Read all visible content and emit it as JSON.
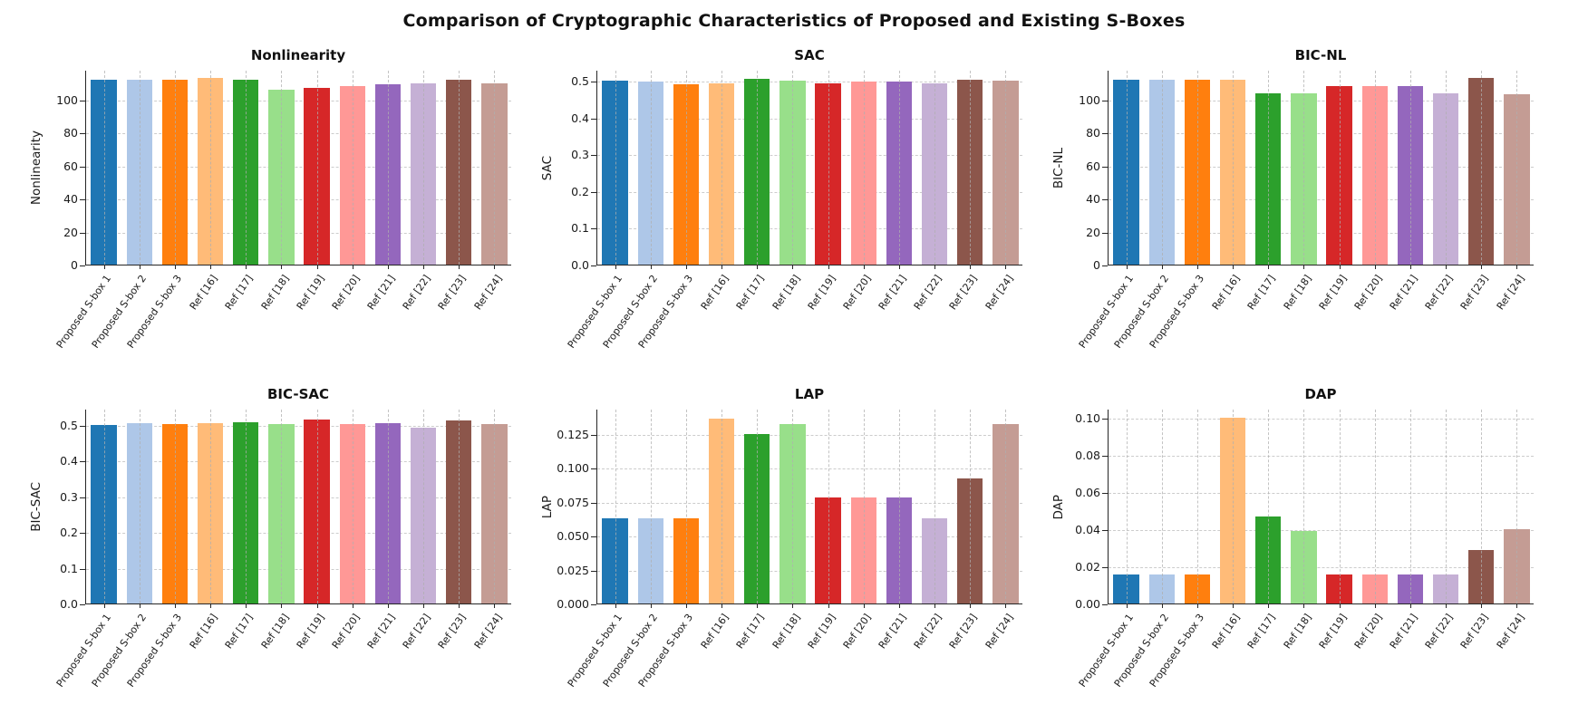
{
  "page_title": "Comparison of Cryptographic Characteristics of Proposed and Existing S-Boxes",
  "bar_colors": [
    "#1f77b4",
    "#aec7e8",
    "#ff7f0e",
    "#ffbb78",
    "#2ca02c",
    "#98df8a",
    "#d62728",
    "#ff9896",
    "#9467bd",
    "#c5b0d5",
    "#8c564b",
    "#c49c94"
  ],
  "categories": [
    "Proposed S-box 1",
    "Proposed S-box 2",
    "Proposed S-box 3",
    "Ref [16]",
    "Ref [17]",
    "Ref [18]",
    "Ref [19]",
    "Ref [20]",
    "Ref [21]",
    "Ref [22]",
    "Ref [23]",
    "Ref [24]"
  ],
  "chart_data": [
    {
      "type": "bar",
      "title": "Nonlinearity",
      "ylabel": "Nonlinearity",
      "xlabel": "",
      "grid": "dashed",
      "legend": "none",
      "categories": [
        "Proposed S-box 1",
        "Proposed S-box 2",
        "Proposed S-box 3",
        "Ref [16]",
        "Ref [17]",
        "Ref [18]",
        "Ref [19]",
        "Ref [20]",
        "Ref [21]",
        "Ref [22]",
        "Ref [23]",
        "Ref [24]"
      ],
      "values": [
        112,
        112,
        112,
        113,
        112,
        106,
        107,
        108,
        109,
        110,
        112,
        110
      ],
      "ylim": [
        0,
        118
      ],
      "ytick_values": [
        0,
        20,
        40,
        60,
        80,
        100
      ],
      "ytick_labels": [
        "0",
        "20",
        "40",
        "60",
        "80",
        "100"
      ]
    },
    {
      "type": "bar",
      "title": "SAC",
      "ylabel": "SAC",
      "xlabel": "",
      "grid": "dashed",
      "legend": "none",
      "categories": [
        "Proposed S-box 1",
        "Proposed S-box 2",
        "Proposed S-box 3",
        "Ref [16]",
        "Ref [17]",
        "Ref [18]",
        "Ref [19]",
        "Ref [20]",
        "Ref [21]",
        "Ref [22]",
        "Ref [23]",
        "Ref [24]"
      ],
      "values": [
        0.5,
        0.499,
        0.49,
        0.494,
        0.505,
        0.5,
        0.493,
        0.498,
        0.499,
        0.494,
        0.502,
        0.5
      ],
      "ylim": [
        0,
        0.53
      ],
      "ytick_values": [
        0,
        0.1,
        0.2,
        0.3,
        0.4,
        0.5
      ],
      "ytick_labels": [
        "0.0",
        "0.1",
        "0.2",
        "0.3",
        "0.4",
        "0.5"
      ]
    },
    {
      "type": "bar",
      "title": "BIC-NL",
      "ylabel": "BIC-NL",
      "xlabel": "",
      "grid": "dashed",
      "legend": "none",
      "categories": [
        "Proposed S-box 1",
        "Proposed S-box 2",
        "Proposed S-box 3",
        "Ref [16]",
        "Ref [17]",
        "Ref [18]",
        "Ref [19]",
        "Ref [20]",
        "Ref [21]",
        "Ref [22]",
        "Ref [23]",
        "Ref [24]"
      ],
      "values": [
        112,
        112,
        112,
        112,
        104,
        103.5,
        108,
        108,
        108,
        104,
        113,
        103
      ],
      "ylim": [
        0,
        118
      ],
      "ytick_values": [
        0,
        20,
        40,
        60,
        80,
        100
      ],
      "ytick_labels": [
        "0",
        "20",
        "40",
        "60",
        "80",
        "100"
      ]
    },
    {
      "type": "bar",
      "title": "BIC-SAC",
      "ylabel": "BIC-SAC",
      "xlabel": "",
      "grid": "dashed",
      "legend": "none",
      "categories": [
        "Proposed S-box 1",
        "Proposed S-box 2",
        "Proposed S-box 3",
        "Ref [16]",
        "Ref [17]",
        "Ref [18]",
        "Ref [19]",
        "Ref [20]",
        "Ref [21]",
        "Ref [22]",
        "Ref [23]",
        "Ref [24]"
      ],
      "values": [
        0.5,
        0.504,
        0.503,
        0.505,
        0.507,
        0.502,
        0.515,
        0.503,
        0.505,
        0.492,
        0.512,
        0.501
      ],
      "ylim": [
        0,
        0.545
      ],
      "ytick_values": [
        0,
        0.1,
        0.2,
        0.3,
        0.4,
        0.5
      ],
      "ytick_labels": [
        "0.0",
        "0.1",
        "0.2",
        "0.3",
        "0.4",
        "0.5"
      ]
    },
    {
      "type": "bar",
      "title": "LAP",
      "ylabel": "LAP",
      "xlabel": "",
      "grid": "dashed",
      "legend": "none",
      "categories": [
        "Proposed S-box 1",
        "Proposed S-box 2",
        "Proposed S-box 3",
        "Ref [16]",
        "Ref [17]",
        "Ref [18]",
        "Ref [19]",
        "Ref [20]",
        "Ref [21]",
        "Ref [22]",
        "Ref [23]",
        "Ref [24]"
      ],
      "values": [
        0.0625,
        0.0625,
        0.0625,
        0.136,
        0.125,
        0.132,
        0.078,
        0.078,
        0.078,
        0.0625,
        0.092,
        0.132
      ],
      "ylim": [
        0,
        0.1435
      ],
      "ytick_values": [
        0,
        0.025,
        0.05,
        0.075,
        0.1,
        0.125
      ],
      "ytick_labels": [
        "0.000",
        "0.025",
        "0.050",
        "0.075",
        "0.100",
        "0.125"
      ]
    },
    {
      "type": "bar",
      "title": "DAP",
      "ylabel": "DAP",
      "xlabel": "",
      "grid": "dashed",
      "legend": "none",
      "categories": [
        "Proposed S-box 1",
        "Proposed S-box 2",
        "Proposed S-box 3",
        "Ref [16]",
        "Ref [17]",
        "Ref [18]",
        "Ref [19]",
        "Ref [20]",
        "Ref [21]",
        "Ref [22]",
        "Ref [23]",
        "Ref [24]"
      ],
      "values": [
        0.0156,
        0.0156,
        0.0156,
        0.1,
        0.047,
        0.039,
        0.0156,
        0.0156,
        0.0156,
        0.0156,
        0.029,
        0.04
      ],
      "ylim": [
        0,
        0.105
      ],
      "ytick_values": [
        0,
        0.02,
        0.04,
        0.06,
        0.08,
        0.1
      ],
      "ytick_labels": [
        "0.00",
        "0.02",
        "0.04",
        "0.06",
        "0.08",
        "0.10"
      ]
    }
  ]
}
